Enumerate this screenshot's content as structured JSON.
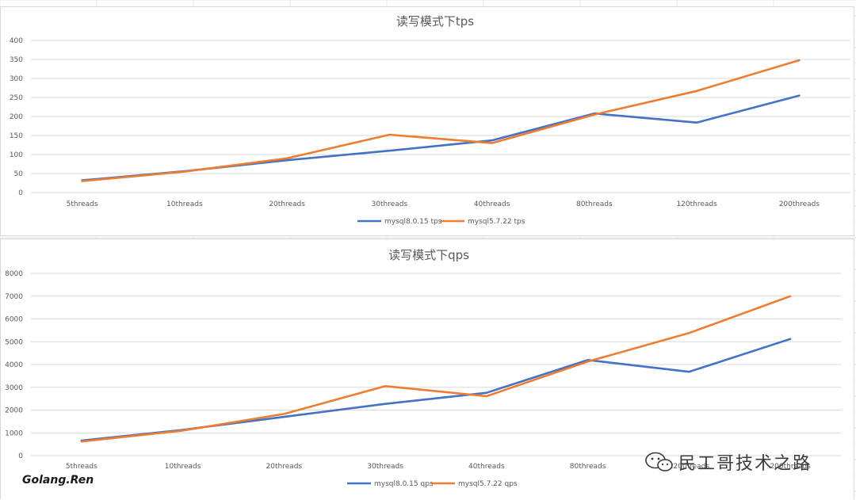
{
  "chart_data": [
    {
      "type": "line",
      "title": "读写模式下tps",
      "categories": [
        "5threads",
        "10threads",
        "20threads",
        "30threads",
        "40threads",
        "80threads",
        "120threads",
        "200threads"
      ],
      "ylim": [
        0,
        400
      ],
      "yticks": [
        0,
        50,
        100,
        150,
        200,
        250,
        300,
        350,
        400
      ],
      "grid": true,
      "legend_position": "bottom",
      "series": [
        {
          "name": "mysql8.0.15 tps",
          "color": "#4472c4",
          "values": [
            32,
            56,
            85,
            110,
            137,
            208,
            184,
            255
          ]
        },
        {
          "name": "mysql5.7.22 tps",
          "color": "#ed7d31",
          "values": [
            30,
            55,
            90,
            152,
            130,
            205,
            267,
            348
          ]
        }
      ]
    },
    {
      "type": "line",
      "title": "读写模式下qps",
      "categories": [
        "5threads",
        "10threads",
        "20threads",
        "30threads",
        "40threads",
        "80threads",
        "120threads",
        "200threads"
      ],
      "ylim": [
        0,
        8000
      ],
      "yticks": [
        0,
        1000,
        2000,
        3000,
        4000,
        5000,
        6000,
        7000,
        8000
      ],
      "grid": true,
      "legend_position": "bottom",
      "series": [
        {
          "name": "mysql8.0.15 qps",
          "color": "#4472c4",
          "values": [
            660,
            1130,
            1700,
            2270,
            2760,
            4200,
            3680,
            5120
          ]
        },
        {
          "name": "mysql5.7.22 qps",
          "color": "#ed7d31",
          "values": [
            620,
            1100,
            1830,
            3050,
            2610,
            4130,
            5380,
            7000
          ]
        }
      ]
    }
  ],
  "watermark": {
    "text": "民工哥技术之路",
    "icon": "wechat-icon"
  },
  "signature": "Golang.Ren"
}
